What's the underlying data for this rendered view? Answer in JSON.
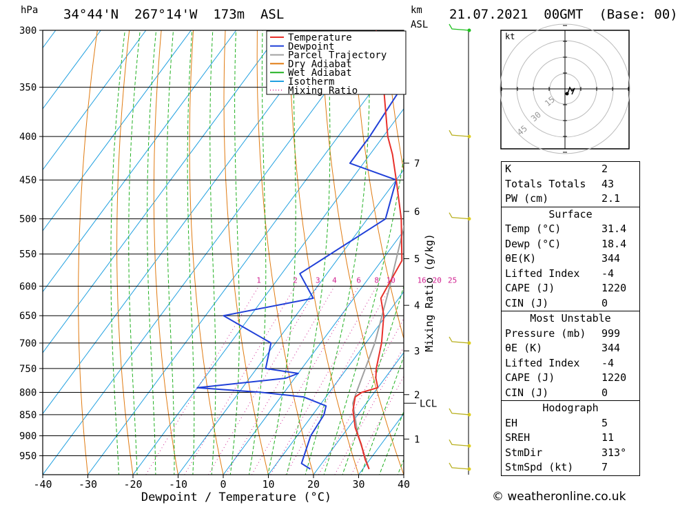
{
  "header": {
    "location": "34°44'N  267°14'W  173m  ASL",
    "datetime": "21.07.2021  00GMT  (Base: 00)",
    "hpa_label": "hPa",
    "km_label": "km",
    "asl_label": "ASL"
  },
  "chart_data": {
    "type": "skew-t",
    "xlabel": "Dewpoint / Temperature (°C)",
    "ylabel_right": "Mixing Ratio (g/kg)",
    "xlim": [
      -40,
      40
    ],
    "ylim_hpa": [
      1000,
      300
    ],
    "x_ticks": [
      -40,
      -30,
      -20,
      -10,
      0,
      10,
      20,
      30,
      40
    ],
    "pressure_levels": [
      300,
      350,
      400,
      450,
      500,
      550,
      600,
      650,
      700,
      750,
      800,
      850,
      900,
      950
    ],
    "km_levels": [
      {
        "km": "1",
        "p": 908
      },
      {
        "km": "2",
        "p": 805
      },
      {
        "km": "3",
        "p": 715
      },
      {
        "km": "4",
        "p": 632
      },
      {
        "km": "5",
        "p": 557
      },
      {
        "km": "6",
        "p": 490
      },
      {
        "km": "7",
        "p": 430
      }
    ],
    "lcl": {
      "label": "LCL",
      "p": 824
    },
    "mixing_ratio_labels": [
      "1",
      "2",
      "3",
      "4",
      "6",
      "8",
      "10",
      "16",
      "20",
      "25"
    ],
    "mixing_ratio_values": [
      1,
      2,
      3,
      4,
      6,
      8,
      10,
      16,
      20,
      25
    ],
    "legend": [
      {
        "name": "Temperature",
        "color": "#e8302a",
        "style": "solid"
      },
      {
        "name": "Dewpoint",
        "color": "#2040d8",
        "style": "solid"
      },
      {
        "name": "Parcel Trajectory",
        "color": "#a0a0a0",
        "style": "solid"
      },
      {
        "name": "Dry Adiabat",
        "color": "#e07a10",
        "style": "solid"
      },
      {
        "name": "Wet Adiabat",
        "color": "#20b020",
        "style": "solid"
      },
      {
        "name": "Isotherm",
        "color": "#20a0e0",
        "style": "solid"
      },
      {
        "name": "Mixing Ratio",
        "color": "#d02090",
        "style": "dotted"
      }
    ],
    "temperature": [
      [
        985,
        31.4
      ],
      [
        960,
        29
      ],
      [
        920,
        25.5
      ],
      [
        880,
        21.5
      ],
      [
        840,
        18.2
      ],
      [
        810,
        16.5
      ],
      [
        800,
        17.2
      ],
      [
        790,
        20
      ],
      [
        770,
        18
      ],
      [
        750,
        16.5
      ],
      [
        700,
        13.5
      ],
      [
        650,
        9.5
      ],
      [
        620,
        6
      ],
      [
        600,
        5.5
      ],
      [
        560,
        4.5
      ],
      [
        500,
        -2.5
      ],
      [
        450,
        -10
      ],
      [
        420,
        -15
      ],
      [
        400,
        -19
      ],
      [
        350,
        -28
      ],
      [
        300,
        -39
      ]
    ],
    "dewpoint": [
      [
        985,
        18.4
      ],
      [
        970,
        15.5
      ],
      [
        900,
        13
      ],
      [
        850,
        12.5
      ],
      [
        830,
        11.5
      ],
      [
        810,
        5
      ],
      [
        800,
        -5
      ],
      [
        790,
        -20
      ],
      [
        770,
        -2
      ],
      [
        760,
        0
      ],
      [
        750,
        -8
      ],
      [
        700,
        -11
      ],
      [
        650,
        -26
      ],
      [
        620,
        -9
      ],
      [
        580,
        -16
      ],
      [
        500,
        -6
      ],
      [
        450,
        -10
      ],
      [
        430,
        -23
      ],
      [
        400,
        -23
      ],
      [
        350,
        -24
      ],
      [
        300,
        -26
      ]
    ],
    "parcel": [
      [
        985,
        31.4
      ],
      [
        900,
        23.5
      ],
      [
        824,
        17
      ],
      [
        800,
        16
      ],
      [
        700,
        12
      ],
      [
        600,
        6
      ],
      [
        500,
        -1.5
      ],
      [
        400,
        -13
      ],
      [
        360,
        -19
      ],
      [
        330,
        -25
      ],
      [
        300,
        -31
      ]
    ],
    "hodograph": {
      "unit_label": "kt",
      "ring_labels": [
        "15",
        "30",
        "45"
      ]
    },
    "wind_barbs_p": [
      300,
      400,
      500,
      700,
      850,
      925,
      985
    ]
  },
  "indices": {
    "rows": [
      {
        "k": "K",
        "v": "2"
      },
      {
        "k": "Totals Totals",
        "v": "43"
      },
      {
        "k": "PW (cm)",
        "v": "2.1"
      }
    ]
  },
  "surface": {
    "title": "Surface",
    "rows": [
      {
        "k": "Temp (°C)",
        "v": "31.4"
      },
      {
        "k": "Dewp (°C)",
        "v": "18.4"
      },
      {
        "k": "θE(K)",
        "v": "344"
      },
      {
        "k": "Lifted Index",
        "v": "-4"
      },
      {
        "k": "CAPE (J)",
        "v": "1220"
      },
      {
        "k": "CIN (J)",
        "v": "0"
      }
    ]
  },
  "most_unstable": {
    "title": "Most Unstable",
    "rows": [
      {
        "k": "Pressure (mb)",
        "v": "999"
      },
      {
        "k": "θE (K)",
        "v": "344"
      },
      {
        "k": "Lifted Index",
        "v": "-4"
      },
      {
        "k": "CAPE (J)",
        "v": "1220"
      },
      {
        "k": "CIN (J)",
        "v": "0"
      }
    ]
  },
  "hodograph_table": {
    "title": "Hodograph",
    "rows": [
      {
        "k": "EH",
        "v": "5"
      },
      {
        "k": "SREH",
        "v": "11"
      },
      {
        "k": "StmDir",
        "v": "313°"
      },
      {
        "k": "StmSpd (kt)",
        "v": "7"
      }
    ]
  },
  "footer": {
    "copyright": "© weatheronline.co.uk"
  },
  "colors": {
    "grid": "#000000",
    "background": "#ffffff"
  }
}
